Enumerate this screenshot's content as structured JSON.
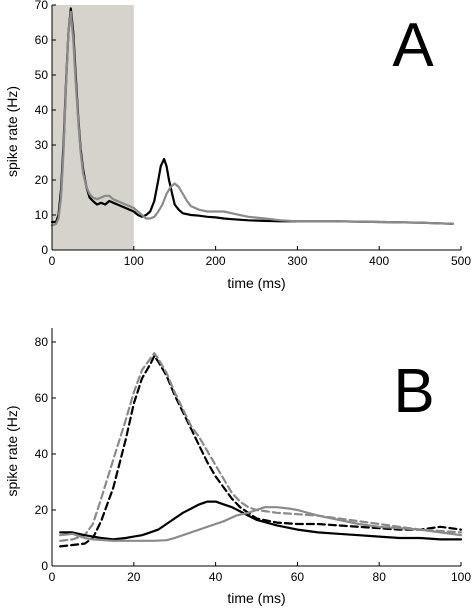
{
  "chart_data": [
    {
      "type": "line",
      "panel_label": "A",
      "xlabel": "time (ms)",
      "ylabel": "spike rate (Hz)",
      "xlim": [
        0,
        500
      ],
      "ylim": [
        0,
        70
      ],
      "xticks": [
        0,
        100,
        200,
        300,
        400,
        500
      ],
      "yticks": [
        0,
        10,
        20,
        30,
        40,
        50,
        60,
        70
      ],
      "shaded_region": {
        "x": [
          0,
          100
        ],
        "color": "#d6d2cc"
      },
      "series": [
        {
          "color": "#000000",
          "style": "solid",
          "points": [
            [
              0,
              8
            ],
            [
              5,
              8
            ],
            [
              8,
              10
            ],
            [
              11,
              17
            ],
            [
              14,
              30
            ],
            [
              17,
              47
            ],
            [
              20,
              62
            ],
            [
              23,
              69
            ],
            [
              26,
              62
            ],
            [
              29,
              50
            ],
            [
              32,
              38
            ],
            [
              35,
              29
            ],
            [
              38,
              23
            ],
            [
              42,
              18
            ],
            [
              46,
              15
            ],
            [
              50,
              14
            ],
            [
              55,
              13
            ],
            [
              60,
              13.5
            ],
            [
              65,
              13
            ],
            [
              70,
              14
            ],
            [
              75,
              13.5
            ],
            [
              80,
              13
            ],
            [
              85,
              12.5
            ],
            [
              90,
              12
            ],
            [
              95,
              11.5
            ],
            [
              100,
              11
            ],
            [
              105,
              10
            ],
            [
              110,
              9.5
            ],
            [
              115,
              10
            ],
            [
              120,
              11
            ],
            [
              125,
              14
            ],
            [
              130,
              20
            ],
            [
              133,
              24
            ],
            [
              137,
              26
            ],
            [
              140,
              24
            ],
            [
              143,
              20
            ],
            [
              147,
              16
            ],
            [
              150,
              13
            ],
            [
              155,
              11.5
            ],
            [
              160,
              10.5
            ],
            [
              170,
              10
            ],
            [
              180,
              9.8
            ],
            [
              190,
              9.5
            ],
            [
              200,
              9.3
            ],
            [
              210,
              9
            ],
            [
              220,
              8.8
            ],
            [
              240,
              8.5
            ],
            [
              260,
              8.3
            ],
            [
              280,
              8.2
            ],
            [
              300,
              8.2
            ],
            [
              350,
              8.2
            ],
            [
              400,
              8
            ],
            [
              450,
              7.8
            ],
            [
              490,
              7.5
            ]
          ]
        },
        {
          "color": "#8a8a8a",
          "style": "solid",
          "points": [
            [
              0,
              7
            ],
            [
              5,
              7.5
            ],
            [
              8,
              9
            ],
            [
              11,
              15
            ],
            [
              14,
              28
            ],
            [
              17,
              46
            ],
            [
              20,
              62
            ],
            [
              23,
              68
            ],
            [
              26,
              60
            ],
            [
              29,
              48
            ],
            [
              32,
              37
            ],
            [
              35,
              28
            ],
            [
              38,
              22
            ],
            [
              42,
              18
            ],
            [
              46,
              16
            ],
            [
              50,
              15
            ],
            [
              55,
              14.5
            ],
            [
              60,
              15
            ],
            [
              65,
              15.5
            ],
            [
              70,
              15.5
            ],
            [
              75,
              14.5
            ],
            [
              80,
              14
            ],
            [
              85,
              13.5
            ],
            [
              90,
              13
            ],
            [
              95,
              12.5
            ],
            [
              100,
              12
            ],
            [
              105,
              11
            ],
            [
              110,
              10
            ],
            [
              115,
              9
            ],
            [
              120,
              9
            ],
            [
              125,
              9.5
            ],
            [
              130,
              11
            ],
            [
              135,
              13
            ],
            [
              140,
              16
            ],
            [
              145,
              18
            ],
            [
              150,
              19
            ],
            [
              155,
              18
            ],
            [
              160,
              16
            ],
            [
              165,
              14
            ],
            [
              170,
              12.5
            ],
            [
              180,
              11.5
            ],
            [
              190,
              11
            ],
            [
              200,
              11
            ],
            [
              210,
              11
            ],
            [
              220,
              10.5
            ],
            [
              240,
              9.5
            ],
            [
              260,
              9
            ],
            [
              280,
              8.5
            ],
            [
              300,
              8.2
            ],
            [
              350,
              8.2
            ],
            [
              400,
              8
            ],
            [
              450,
              7.8
            ],
            [
              490,
              7.5
            ]
          ]
        }
      ]
    },
    {
      "type": "line",
      "panel_label": "B",
      "xlabel": "time (ms)",
      "ylabel": "spike rate (Hz)",
      "xlim": [
        0,
        100
      ],
      "ylim": [
        0,
        85
      ],
      "xticks": [
        0,
        20,
        40,
        60,
        80,
        100
      ],
      "yticks": [
        0,
        20,
        40,
        60,
        80
      ],
      "series": [
        {
          "color": "#000000",
          "style": "dashed",
          "points": [
            [
              2,
              7
            ],
            [
              5,
              7.5
            ],
            [
              8,
              8
            ],
            [
              10,
              10
            ],
            [
              12,
              16
            ],
            [
              15,
              28
            ],
            [
              18,
              45
            ],
            [
              20,
              58
            ],
            [
              22,
              67
            ],
            [
              24,
              72
            ],
            [
              25,
              75
            ],
            [
              26,
              73
            ],
            [
              28,
              68
            ],
            [
              30,
              61
            ],
            [
              32,
              55
            ],
            [
              34,
              49
            ],
            [
              36,
              43
            ],
            [
              38,
              37
            ],
            [
              40,
              32
            ],
            [
              42,
              28
            ],
            [
              44,
              24
            ],
            [
              46,
              21
            ],
            [
              48,
              19
            ],
            [
              50,
              17
            ],
            [
              55,
              15.5
            ],
            [
              60,
              15
            ],
            [
              65,
              15
            ],
            [
              70,
              14.5
            ],
            [
              75,
              14
            ],
            [
              80,
              13.5
            ],
            [
              85,
              13
            ],
            [
              90,
              13
            ],
            [
              95,
              14
            ],
            [
              100,
              13
            ]
          ]
        },
        {
          "color": "#8a8a8a",
          "style": "dashed",
          "points": [
            [
              2,
              9
            ],
            [
              5,
              9.5
            ],
            [
              8,
              11
            ],
            [
              10,
              15
            ],
            [
              12,
              24
            ],
            [
              15,
              38
            ],
            [
              18,
              52
            ],
            [
              20,
              62
            ],
            [
              22,
              70
            ],
            [
              24,
              74
            ],
            [
              25,
              76
            ],
            [
              26,
              74
            ],
            [
              28,
              69
            ],
            [
              30,
              62
            ],
            [
              32,
              56
            ],
            [
              34,
              50
            ],
            [
              36,
              46
            ],
            [
              38,
              41
            ],
            [
              40,
              36
            ],
            [
              42,
              31
            ],
            [
              44,
              26
            ],
            [
              46,
              23
            ],
            [
              48,
              21
            ],
            [
              50,
              20
            ],
            [
              55,
              19
            ],
            [
              60,
              18.5
            ],
            [
              65,
              18
            ],
            [
              70,
              17
            ],
            [
              75,
              16
            ],
            [
              80,
              15
            ],
            [
              85,
              14
            ],
            [
              90,
              13
            ],
            [
              95,
              12.5
            ],
            [
              100,
              12
            ]
          ]
        },
        {
          "color": "#000000",
          "style": "solid",
          "points": [
            [
              2,
              12
            ],
            [
              5,
              12
            ],
            [
              8,
              11
            ],
            [
              10,
              10.5
            ],
            [
              12,
              10
            ],
            [
              15,
              9.5
            ],
            [
              18,
              10
            ],
            [
              20,
              10.5
            ],
            [
              22,
              11
            ],
            [
              24,
              12
            ],
            [
              26,
              13
            ],
            [
              28,
              15
            ],
            [
              30,
              17
            ],
            [
              32,
              19
            ],
            [
              34,
              20.5
            ],
            [
              36,
              22
            ],
            [
              38,
              23
            ],
            [
              40,
              23
            ],
            [
              42,
              22
            ],
            [
              44,
              21
            ],
            [
              46,
              19.5
            ],
            [
              48,
              18
            ],
            [
              50,
              16.5
            ],
            [
              55,
              14.5
            ],
            [
              60,
              13
            ],
            [
              65,
              12
            ],
            [
              70,
              11.5
            ],
            [
              75,
              11
            ],
            [
              80,
              10.5
            ],
            [
              85,
              10
            ],
            [
              90,
              10
            ],
            [
              95,
              9.5
            ],
            [
              100,
              9.5
            ]
          ]
        },
        {
          "color": "#8a8a8a",
          "style": "solid",
          "points": [
            [
              2,
              11
            ],
            [
              5,
              11.5
            ],
            [
              8,
              10
            ],
            [
              10,
              9.5
            ],
            [
              15,
              9
            ],
            [
              20,
              9
            ],
            [
              25,
              9
            ],
            [
              28,
              9.2
            ],
            [
              30,
              10
            ],
            [
              35,
              12.5
            ],
            [
              40,
              15
            ],
            [
              42,
              16
            ],
            [
              45,
              18
            ],
            [
              48,
              19
            ],
            [
              50,
              20
            ],
            [
              52,
              21
            ],
            [
              55,
              21
            ],
            [
              58,
              20.5
            ],
            [
              60,
              20
            ],
            [
              65,
              18
            ],
            [
              70,
              16.5
            ],
            [
              75,
              15
            ],
            [
              80,
              14
            ],
            [
              85,
              13.5
            ],
            [
              90,
              13
            ],
            [
              95,
              12
            ],
            [
              100,
              11
            ]
          ]
        }
      ]
    }
  ]
}
